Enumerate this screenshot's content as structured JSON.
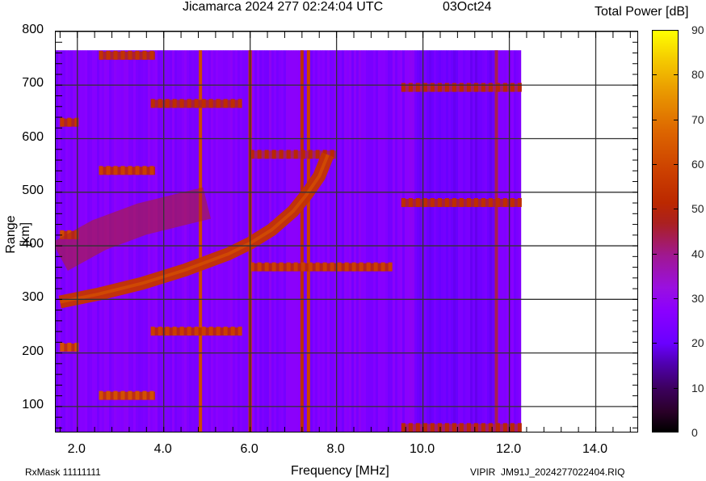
{
  "header": {
    "title": "Jicamarca 2024 277 02:24:04 UTC",
    "date": "03Oct24",
    "colorbar_title": "Total Power [dB]"
  },
  "footer": {
    "rxmask": "RxMask 11111111",
    "file": "VIPIR  JM91J_2024277022404.RIQ"
  },
  "axes": {
    "xlabel": "Frequency [MHz]",
    "ylabel": "Range [km]",
    "xticks": [
      "2.0",
      "4.0",
      "6.0",
      "8.0",
      "10.0",
      "12.0",
      "14.0"
    ],
    "yticks": [
      "800",
      "700",
      "600",
      "500",
      "400",
      "300",
      "200",
      "100"
    ],
    "colorbar_ticks": [
      "90",
      "80",
      "70",
      "60",
      "50",
      "40",
      "30",
      "20",
      "10",
      "0"
    ]
  },
  "colors": {
    "background_power": "#8a00ff",
    "echo_trace": "#c23c00",
    "strong_echo": "#e06a00",
    "grid": "#333333"
  },
  "chart_data": {
    "type": "heatmap",
    "title": "Jicamarca 2024 277 02:24:04 UTC  03Oct24",
    "subtitle": "Ionogram (VIPIR) total power",
    "xlabel": "Frequency [MHz]",
    "ylabel": "Range [km]",
    "xlim": [
      1.5,
      15.0
    ],
    "ylim": [
      50,
      800
    ],
    "data_extent": {
      "x": [
        1.5,
        12.25
      ],
      "y": [
        50,
        765
      ]
    },
    "grid": true,
    "colorbar": {
      "label": "Total Power [dB]",
      "range": [
        0,
        90
      ],
      "ticks": [
        0,
        10,
        20,
        30,
        40,
        50,
        60,
        70,
        80,
        90
      ],
      "position": "right"
    },
    "background_level_db": 25,
    "echo_traces": [
      {
        "name": "F-region trace (O-mode)",
        "points": [
          [
            1.6,
            295
          ],
          [
            2.5,
            310
          ],
          [
            3.5,
            330
          ],
          [
            4.5,
            355
          ],
          [
            5.5,
            385
          ],
          [
            6.0,
            405
          ],
          [
            6.5,
            430
          ],
          [
            7.0,
            465
          ],
          [
            7.3,
            495
          ],
          [
            7.6,
            530
          ],
          [
            7.8,
            570
          ]
        ],
        "level_db": 55
      },
      {
        "name": "Diffuse F echo (lower freq)",
        "points": [
          [
            1.6,
            380
          ],
          [
            2.5,
            420
          ],
          [
            3.5,
            450
          ],
          [
            4.5,
            470
          ],
          [
            5.0,
            480
          ]
        ],
        "level_db": 45
      }
    ],
    "interference_lines_mhz": [
      {
        "f": 4.85,
        "level_db": 62
      },
      {
        "f": 6.0,
        "level_db": 55
      },
      {
        "f": 7.2,
        "level_db": 52
      },
      {
        "f": 7.35,
        "level_db": 60
      },
      {
        "f": 11.7,
        "level_db": 40
      }
    ],
    "echo_bands": [
      {
        "f": [
          1.6,
          2.0
        ],
        "range": 210,
        "level_db": 60
      },
      {
        "f": [
          2.5,
          3.8
        ],
        "range": 120,
        "level_db": 60
      },
      {
        "f": [
          3.7,
          5.8
        ],
        "range": 240,
        "level_db": 55
      },
      {
        "f": [
          6.0,
          9.2
        ],
        "range": 360,
        "level_db": 55
      },
      {
        "f": [
          2.5,
          3.8
        ],
        "range": 540,
        "level_db": 55
      },
      {
        "f": [
          1.6,
          2.0
        ],
        "range": 420,
        "level_db": 58
      },
      {
        "f": [
          1.6,
          2.0
        ],
        "range": 630,
        "level_db": 52
      },
      {
        "f": [
          2.5,
          3.8
        ],
        "range": 755,
        "level_db": 50
      },
      {
        "f": [
          3.7,
          5.8
        ],
        "range": 665,
        "level_db": 48
      },
      {
        "f": [
          6.0,
          8.0
        ],
        "range": 570,
        "level_db": 45
      },
      {
        "f": [
          9.5,
          12.2
        ],
        "range": 480,
        "level_db": 48
      },
      {
        "f": [
          9.5,
          12.2
        ],
        "range": 695,
        "level_db": 45
      },
      {
        "f": [
          9.5,
          12.2
        ],
        "range": 60,
        "level_db": 45
      }
    ]
  }
}
